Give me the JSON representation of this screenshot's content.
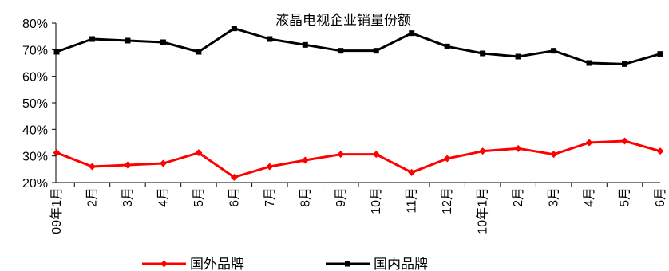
{
  "chart_data": {
    "type": "line",
    "title": "液晶电视企业销量份额",
    "categories": [
      "09年1月",
      "2月",
      "3月",
      "4月",
      "5月",
      "6月",
      "7月",
      "8月",
      "9月",
      "10月",
      "11月",
      "12月",
      "10年1月",
      "2月",
      "3月",
      "4月",
      "5月",
      "6月"
    ],
    "y_tick_labels": [
      "20%",
      "30%",
      "40%",
      "50%",
      "60%",
      "70%",
      "80%"
    ],
    "ylim": [
      20,
      80
    ],
    "y_unit": "%",
    "grid": false,
    "legend_position": "bottom",
    "series": [
      {
        "name": "国外品牌",
        "color": "#ff0000",
        "marker": "diamond",
        "values": [
          31.2,
          26.0,
          26.6,
          27.2,
          31.2,
          22.0,
          26.0,
          28.4,
          30.6,
          30.6,
          23.8,
          29.0,
          31.8,
          32.8,
          30.6,
          35.0,
          35.6,
          31.8
        ]
      },
      {
        "name": "国内品牌",
        "color": "#000000",
        "marker": "square",
        "values": [
          69.2,
          74.0,
          73.4,
          72.8,
          69.2,
          78.0,
          74.0,
          71.8,
          69.6,
          69.6,
          76.2,
          71.2,
          68.6,
          67.4,
          69.6,
          65.0,
          64.6,
          68.4
        ]
      }
    ]
  }
}
